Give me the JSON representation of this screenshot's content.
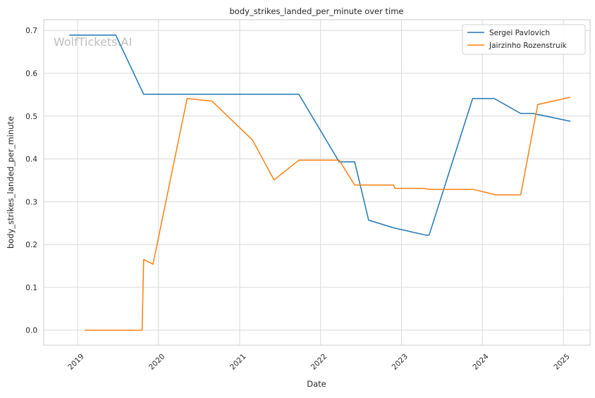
{
  "chart_data": {
    "type": "line",
    "title": "body_strikes_landed_per_minute over time",
    "xlabel": "Date",
    "ylabel": "body_strikes_landed_per_minute",
    "watermark": "WolfTickets.AI",
    "ylim": [
      -0.035,
      0.725
    ],
    "xlim": [
      "2018-08-01",
      "2025-05-01"
    ],
    "y_ticks": [
      "0.0",
      "0.1",
      "0.2",
      "0.3",
      "0.4",
      "0.5",
      "0.6",
      "0.7"
    ],
    "x_ticks": [
      "2019",
      "2020",
      "2021",
      "2022",
      "2023",
      "2024",
      "2025"
    ],
    "grid": true,
    "legend_position": "top-right",
    "colors": {
      "Sergei Pavlovich": "#1f77b4",
      "Jairzinho Rozenstruik": "#ff7f0e"
    },
    "series": [
      {
        "name": "Sergei Pavlovich",
        "points": [
          [
            "2018-11-24",
            0.689
          ],
          [
            "2019-06-22",
            0.689
          ],
          [
            "2019-10-26",
            0.551
          ],
          [
            "2021-09-25",
            0.551
          ],
          [
            "2022-03-26",
            0.393
          ],
          [
            "2022-06-04",
            0.393
          ],
          [
            "2022-08-06",
            0.257
          ],
          [
            "2022-11-26",
            0.239
          ],
          [
            "2023-04-22",
            0.222
          ],
          [
            "2023-05-06",
            0.222
          ],
          [
            "2023-11-18",
            0.541
          ],
          [
            "2024-02-24",
            0.541
          ],
          [
            "2024-06-22",
            0.506
          ],
          [
            "2024-08-17",
            0.506
          ],
          [
            "2025-02-01",
            0.488
          ]
        ]
      },
      {
        "name": "Jairzinho Rozenstruik",
        "points": [
          [
            "2019-02-02",
            0.0
          ],
          [
            "2019-10-19",
            0.0
          ],
          [
            "2019-10-26",
            0.165
          ],
          [
            "2019-12-07",
            0.154
          ],
          [
            "2020-05-09",
            0.541
          ],
          [
            "2020-08-29",
            0.535
          ],
          [
            "2021-02-28",
            0.444
          ],
          [
            "2021-06-05",
            0.351
          ],
          [
            "2021-09-25",
            0.397
          ],
          [
            "2022-03-26",
            0.397
          ],
          [
            "2022-06-04",
            0.339
          ],
          [
            "2022-11-26",
            0.339
          ],
          [
            "2022-12-03",
            0.331
          ],
          [
            "2023-04-15",
            0.331
          ],
          [
            "2023-05-06",
            0.329
          ],
          [
            "2023-11-18",
            0.329
          ],
          [
            "2024-03-02",
            0.316
          ],
          [
            "2024-06-22",
            0.316
          ],
          [
            "2024-09-07",
            0.527
          ],
          [
            "2025-02-01",
            0.544
          ]
        ]
      }
    ]
  }
}
